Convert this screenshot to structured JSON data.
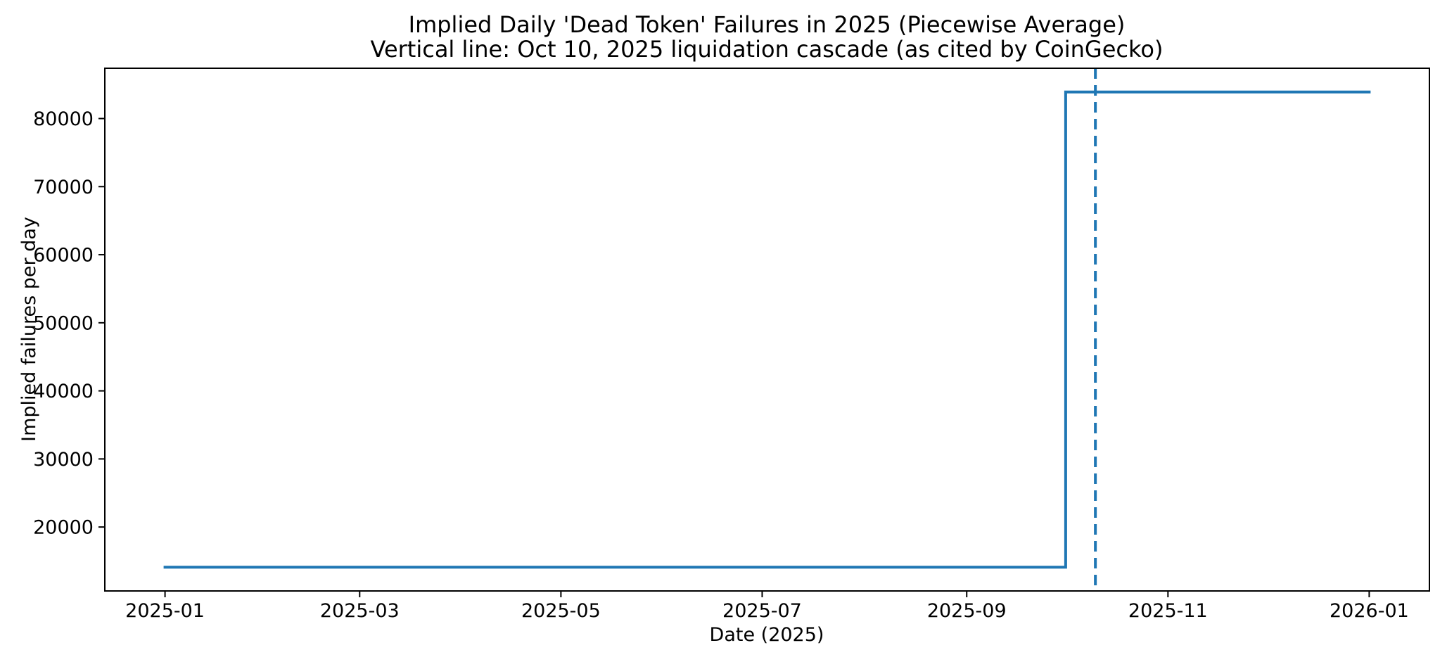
{
  "chart_data": {
    "type": "line",
    "subtype": "step",
    "title": "Implied Daily 'Dead Token' Failures in 2025 (Piecewise Average)",
    "subtitle": "Vertical line: Oct 10, 2025 liquidation cascade (as cited by CoinGecko)",
    "xlabel": "Date (2025)",
    "ylabel": "Implied failures per day",
    "grid": false,
    "legend": false,
    "background_color": "#ffffff",
    "spine_color": "#000000",
    "line_color": "#1f77b4",
    "x_range": {
      "start": "2025-01-01",
      "end": "2026-01-01"
    },
    "margins": 0.05,
    "x_ticks": [
      {
        "label": "2025-01",
        "date": "2025-01-01"
      },
      {
        "label": "2025-03",
        "date": "2025-03-01"
      },
      {
        "label": "2025-05",
        "date": "2025-05-01"
      },
      {
        "label": "2025-07",
        "date": "2025-07-01"
      },
      {
        "label": "2025-09",
        "date": "2025-09-01"
      },
      {
        "label": "2025-11",
        "date": "2025-11-01"
      },
      {
        "label": "2026-01",
        "date": "2026-01-01"
      }
    ],
    "y_ticks": [
      20000,
      30000,
      40000,
      50000,
      60000,
      70000,
      80000
    ],
    "series": [
      {
        "name": "Implied failures per day (piecewise average)",
        "color": "#1f77b4",
        "style": "solid",
        "points": [
          {
            "date": "2025-01-01",
            "value": 14100
          },
          {
            "date": "2025-10-01",
            "value": 14100
          },
          {
            "date": "2025-10-01",
            "value": 83900
          },
          {
            "date": "2026-01-01",
            "value": 83900
          }
        ]
      }
    ],
    "vline": {
      "date": "2025-10-10",
      "color": "#1f77b4",
      "style": "dashed"
    }
  }
}
